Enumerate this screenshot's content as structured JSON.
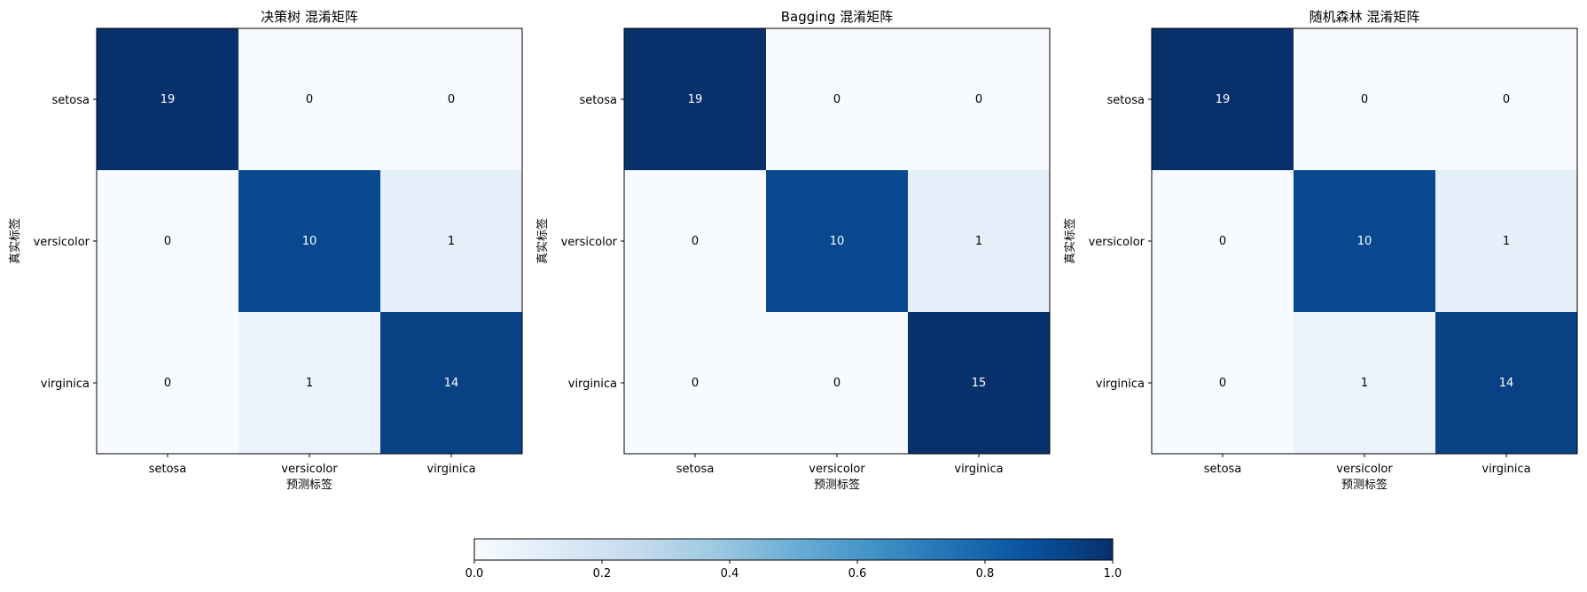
{
  "figure": {
    "colorbar": {
      "ticks": [
        "0.0",
        "0.2",
        "0.4",
        "0.6",
        "0.8",
        "1.0"
      ],
      "range": [
        0,
        1
      ],
      "colormap": [
        "#f7fbff",
        "#deebf7",
        "#c6dbef",
        "#9ecae1",
        "#6baed6",
        "#4292c6",
        "#2171b5",
        "#08519c",
        "#08306b"
      ]
    }
  },
  "chart_data": [
    {
      "type": "heatmap",
      "title": "决策树 混淆矩阵",
      "xlabel": "预测标签",
      "ylabel": "真实标签",
      "x_categories": [
        "setosa",
        "versicolor",
        "virginica"
      ],
      "y_categories": [
        "setosa",
        "versicolor",
        "virginica"
      ],
      "values": [
        [
          19,
          0,
          0
        ],
        [
          0,
          10,
          1
        ],
        [
          0,
          1,
          14
        ]
      ],
      "row_normalized": true
    },
    {
      "type": "heatmap",
      "title": "Bagging 混淆矩阵",
      "xlabel": "预测标签",
      "ylabel": "真实标签",
      "x_categories": [
        "setosa",
        "versicolor",
        "virginica"
      ],
      "y_categories": [
        "setosa",
        "versicolor",
        "virginica"
      ],
      "values": [
        [
          19,
          0,
          0
        ],
        [
          0,
          10,
          1
        ],
        [
          0,
          0,
          15
        ]
      ],
      "row_normalized": true
    },
    {
      "type": "heatmap",
      "title": "随机森林 混淆矩阵",
      "xlabel": "预测标签",
      "ylabel": "真实标签",
      "x_categories": [
        "setosa",
        "versicolor",
        "virginica"
      ],
      "y_categories": [
        "setosa",
        "versicolor",
        "virginica"
      ],
      "values": [
        [
          19,
          0,
          0
        ],
        [
          0,
          10,
          1
        ],
        [
          0,
          1,
          14
        ]
      ],
      "row_normalized": true
    }
  ]
}
